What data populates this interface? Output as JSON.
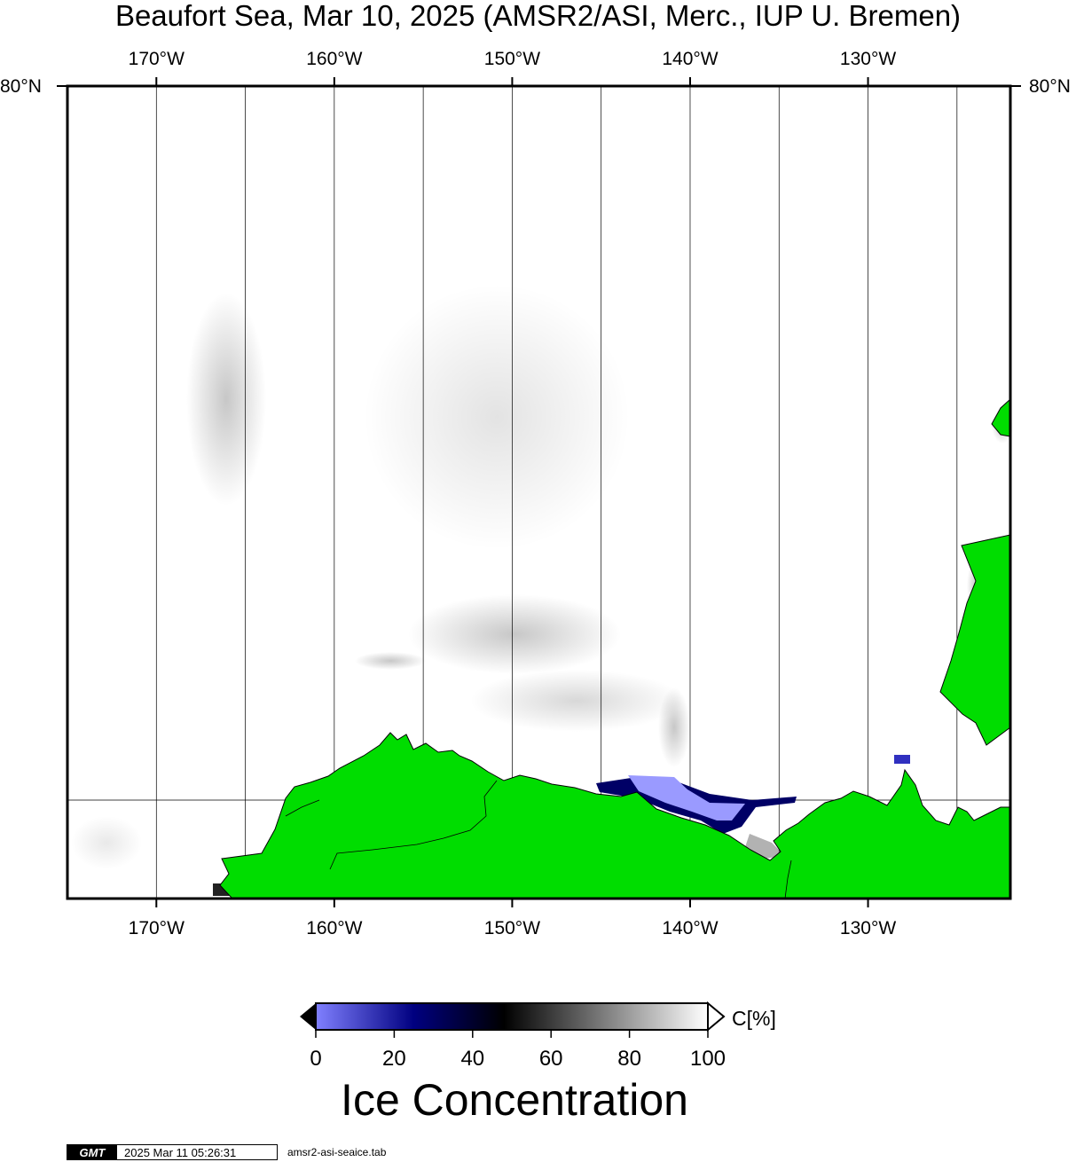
{
  "title": "Beaufort Sea, Mar 10, 2025 (AMSR2/ASI, Merc., IUP U. Bremen)",
  "map": {
    "lon_range": [
      -175,
      -122
    ],
    "lat_top_label": "80°N",
    "lon_ticks": [
      {
        "label": "170°W",
        "lon": -170
      },
      {
        "label": "160°W",
        "lon": -160
      },
      {
        "label": "150°W",
        "lon": -150
      },
      {
        "label": "140°W",
        "lon": -140
      },
      {
        "label": "130°W",
        "lon": -130
      }
    ],
    "minor_meridians": [
      -165,
      -155,
      -145,
      -135,
      -125
    ],
    "colors": {
      "land": "#00dd00",
      "ice_low": "#8080ff",
      "ice_mid": "#000080",
      "ice_high": "#ffffff",
      "frame": "#000000"
    }
  },
  "colorbar": {
    "ticks": [
      "0",
      "20",
      "40",
      "60",
      "80",
      "100"
    ],
    "unit": "C[%]",
    "title": "Ice Concentration",
    "stops": [
      {
        "value": 0,
        "color": "#8080ff"
      },
      {
        "value": 25,
        "color": "#000080"
      },
      {
        "value": 48,
        "color": "#000000"
      },
      {
        "value": 100,
        "color": "#ffffff"
      }
    ]
  },
  "footer": {
    "logo": "GMT",
    "timestamp": "2025 Mar 11 05:26:31",
    "file": "amsr2-asi-seaice.tab"
  }
}
